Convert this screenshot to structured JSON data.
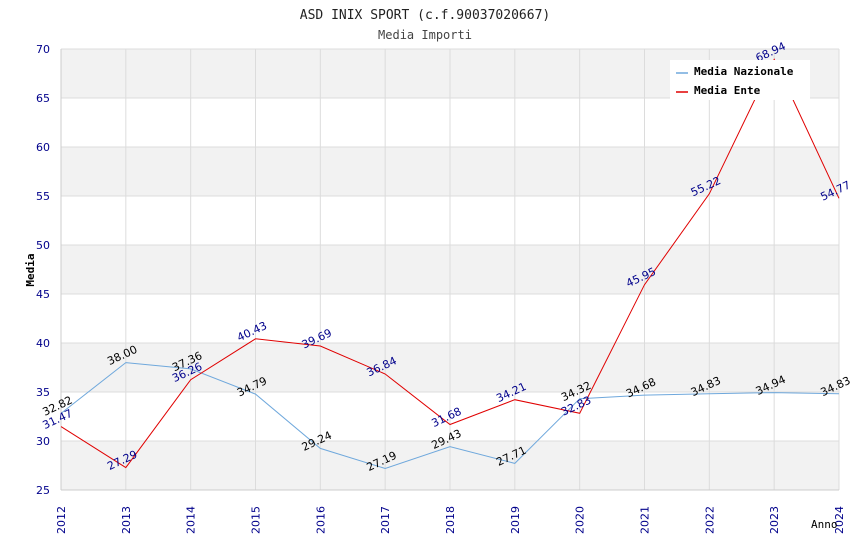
{
  "chart_data": {
    "type": "line",
    "title": "ASD INIX SPORT (c.f.90037020667)",
    "subtitle": "Media Importi",
    "xlabel": "Anno",
    "ylabel": "Media",
    "ylim": [
      25,
      70
    ],
    "yticks": [
      "25",
      "30",
      "35",
      "40",
      "45",
      "50",
      "55",
      "60",
      "65",
      "70"
    ],
    "categories": [
      "2012",
      "2013",
      "2014",
      "2015",
      "2016",
      "2017",
      "2018",
      "2019",
      "2020",
      "2021",
      "2022",
      "2023",
      "2024"
    ],
    "grid": true,
    "legend_position": "top-right",
    "series": [
      {
        "name": "Media Nazionale",
        "color": "#6fa8dc",
        "label_color": "#000000",
        "values": [
          32.82,
          38.0,
          37.36,
          34.79,
          29.24,
          27.19,
          29.43,
          27.71,
          34.32,
          34.68,
          34.83,
          34.94,
          34.83
        ],
        "labels": [
          "32.82",
          "38.00",
          "37.36",
          "34.79",
          "29.24",
          "27.19",
          "29.43",
          "27.71",
          "34.32",
          "34.68",
          "34.83",
          "34.94",
          "34.83"
        ]
      },
      {
        "name": "Media Ente",
        "color": "#e00000",
        "label_color": "#00008b",
        "values": [
          31.47,
          27.29,
          36.26,
          40.43,
          39.69,
          36.84,
          31.68,
          34.21,
          32.83,
          45.95,
          55.22,
          68.94,
          54.77
        ],
        "labels": [
          "31.47",
          "27.29",
          "36.26",
          "40.43",
          "39.69",
          "36.84",
          "31.68",
          "34.21",
          "32.83",
          "45.95",
          "55.22",
          "68.94",
          "54.77"
        ]
      }
    ],
    "colors": {
      "band": "#f2f2f2",
      "grid": "#dcdcdc",
      "axis_text": "#00008b",
      "title": "#222222"
    }
  }
}
